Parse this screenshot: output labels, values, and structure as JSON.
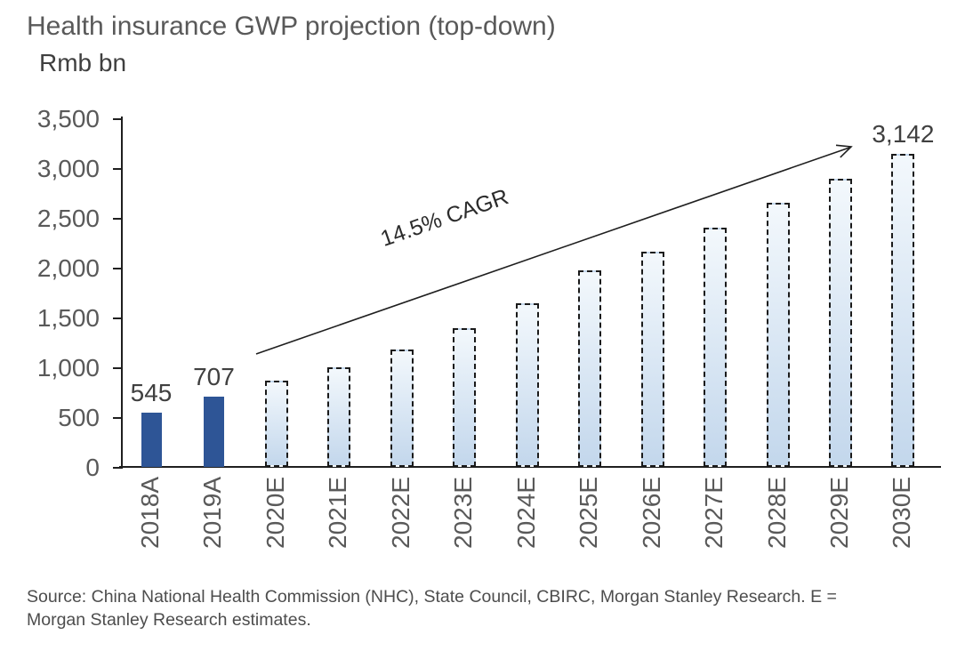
{
  "page": {
    "source_note": "Source: China National Health Commission (NHC), State Council, CBIRC, Morgan Stanley Research. E = Morgan Stanley Research estimates."
  },
  "chart_data": {
    "type": "bar",
    "title": "Health insurance GWP projection (top-down)",
    "ylabel": "Rmb bn",
    "xlabel": "",
    "ylim": [
      0,
      3500
    ],
    "y_tick_interval": 500,
    "y_tick_labels": [
      "3,500",
      "3,000",
      "2,500",
      "2,000",
      "1,500",
      "1,000",
      "500",
      "0"
    ],
    "grid": false,
    "legend": false,
    "annotation": "14.5% CAGR",
    "categories": [
      "2018A",
      "2019A",
      "2020E",
      "2021E",
      "2022E",
      "2023E",
      "2024E",
      "2025E",
      "2026E",
      "2027E",
      "2028E",
      "2029E",
      "2030E"
    ],
    "values": [
      545,
      707,
      870,
      1000,
      1180,
      1390,
      1640,
      1970,
      2160,
      2400,
      2650,
      2890,
      3142
    ],
    "actual_categories": [
      "2018A",
      "2019A"
    ],
    "data_labels": {
      "2018A": "545",
      "2019A": "707",
      "2030E": "3,142"
    },
    "estimate_bar_style": "dashed-outline-gradient",
    "colors": {
      "actual_bar": "#2e5596",
      "estimate_fill_top": "#f3f8fc",
      "estimate_fill_bottom": "#c3d7ec",
      "estimate_border": "#1a1a1a",
      "axis": "#1f1f1f",
      "title_text": "#595959",
      "tick_text": "#595959",
      "data_label_text": "#404040",
      "source_text": "#4d4d4d"
    }
  }
}
